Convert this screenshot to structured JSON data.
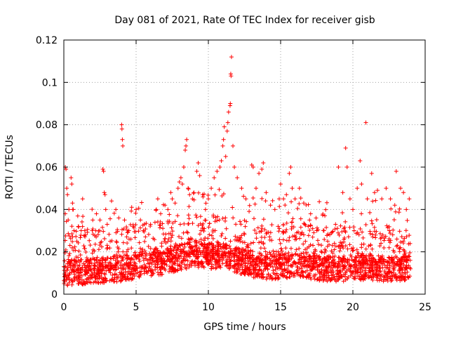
{
  "chart_data": {
    "type": "scatter",
    "title": "Day 081 of 2021, Rate Of TEC Index for receiver gisb",
    "xlabel": "GPS time / hours",
    "ylabel": "ROTI / TECUs",
    "xlim": [
      0,
      25
    ],
    "ylim": [
      0,
      0.12
    ],
    "xticks": [
      "0",
      "5",
      "10",
      "15",
      "20",
      "25"
    ],
    "yticks": [
      "0",
      "0.02",
      "0.04",
      "0.06",
      "0.08",
      "0.1",
      "0.12"
    ],
    "grid": true,
    "marker": "+",
    "color": "#ff0000",
    "series": [
      {
        "name": "ROTI",
        "points": [
          [
            0.0,
            0.013
          ],
          [
            0.1,
            0.038
          ],
          [
            0.1,
            0.06
          ],
          [
            0.15,
            0.059
          ],
          [
            0.2,
            0.05
          ],
          [
            0.25,
            0.047
          ],
          [
            0.3,
            0.035
          ],
          [
            0.35,
            0.04
          ],
          [
            0.5,
            0.055
          ],
          [
            0.55,
            0.052
          ],
          [
            0.6,
            0.043
          ],
          [
            0.65,
            0.04
          ],
          [
            0.7,
            0.03
          ],
          [
            0.9,
            0.025
          ],
          [
            1.0,
            0.032
          ],
          [
            1.2,
            0.03
          ],
          [
            1.3,
            0.045
          ],
          [
            1.5,
            0.028
          ],
          [
            2.0,
            0.035
          ],
          [
            2.2,
            0.03
          ],
          [
            2.5,
            0.035
          ],
          [
            2.7,
            0.059
          ],
          [
            2.75,
            0.058
          ],
          [
            2.8,
            0.048
          ],
          [
            2.85,
            0.047
          ],
          [
            2.9,
            0.04
          ],
          [
            3.0,
            0.033
          ],
          [
            3.3,
            0.044
          ],
          [
            3.6,
            0.04
          ],
          [
            3.8,
            0.036
          ],
          [
            4.0,
            0.08
          ],
          [
            4.02,
            0.078
          ],
          [
            4.05,
            0.073
          ],
          [
            4.08,
            0.07
          ],
          [
            4.2,
            0.035
          ],
          [
            4.5,
            0.03
          ],
          [
            4.8,
            0.032
          ],
          [
            5.0,
            0.04
          ],
          [
            5.3,
            0.035
          ],
          [
            5.5,
            0.03
          ],
          [
            6.0,
            0.033
          ],
          [
            6.4,
            0.04
          ],
          [
            6.5,
            0.045
          ],
          [
            6.7,
            0.038
          ],
          [
            7.0,
            0.042
          ],
          [
            7.2,
            0.04
          ],
          [
            7.4,
            0.048
          ],
          [
            7.5,
            0.045
          ],
          [
            7.7,
            0.043
          ],
          [
            7.9,
            0.05
          ],
          [
            8.0,
            0.053
          ],
          [
            8.1,
            0.055
          ],
          [
            8.2,
            0.052
          ],
          [
            8.3,
            0.06
          ],
          [
            8.4,
            0.068
          ],
          [
            8.45,
            0.07
          ],
          [
            8.5,
            0.073
          ],
          [
            8.6,
            0.05
          ],
          [
            8.7,
            0.047
          ],
          [
            8.9,
            0.045
          ],
          [
            9.0,
            0.048
          ],
          [
            9.2,
            0.058
          ],
          [
            9.3,
            0.062
          ],
          [
            9.4,
            0.056
          ],
          [
            9.6,
            0.047
          ],
          [
            9.8,
            0.04
          ],
          [
            10.0,
            0.045
          ],
          [
            10.2,
            0.05
          ],
          [
            10.4,
            0.055
          ],
          [
            10.6,
            0.058
          ],
          [
            10.8,
            0.06
          ],
          [
            10.9,
            0.063
          ],
          [
            11.0,
            0.07
          ],
          [
            11.05,
            0.073
          ],
          [
            11.1,
            0.079
          ],
          [
            11.2,
            0.065
          ],
          [
            11.3,
            0.077
          ],
          [
            11.35,
            0.081
          ],
          [
            11.4,
            0.086
          ],
          [
            11.5,
            0.089
          ],
          [
            11.52,
            0.09
          ],
          [
            11.55,
            0.104
          ],
          [
            11.57,
            0.103
          ],
          [
            11.6,
            0.112
          ],
          [
            11.7,
            0.07
          ],
          [
            11.8,
            0.06
          ],
          [
            12.0,
            0.055
          ],
          [
            12.3,
            0.05
          ],
          [
            12.6,
            0.045
          ],
          [
            13.0,
            0.061
          ],
          [
            13.1,
            0.06
          ],
          [
            13.3,
            0.05
          ],
          [
            13.5,
            0.057
          ],
          [
            13.7,
            0.059
          ],
          [
            13.8,
            0.062
          ],
          [
            14.0,
            0.048
          ],
          [
            14.3,
            0.042
          ],
          [
            14.6,
            0.04
          ],
          [
            14.9,
            0.045
          ],
          [
            15.0,
            0.052
          ],
          [
            15.2,
            0.045
          ],
          [
            15.4,
            0.047
          ],
          [
            15.6,
            0.057
          ],
          [
            15.7,
            0.06
          ],
          [
            15.8,
            0.05
          ],
          [
            16.0,
            0.045
          ],
          [
            16.3,
            0.05
          ],
          [
            16.6,
            0.043
          ],
          [
            17.0,
            0.035
          ],
          [
            17.5,
            0.03
          ],
          [
            18.0,
            0.03
          ],
          [
            18.4,
            0.028
          ],
          [
            18.8,
            0.033
          ],
          [
            19.0,
            0.06
          ],
          [
            19.3,
            0.048
          ],
          [
            19.5,
            0.069
          ],
          [
            19.6,
            0.06
          ],
          [
            19.8,
            0.045
          ],
          [
            20.0,
            0.04
          ],
          [
            20.3,
            0.05
          ],
          [
            20.5,
            0.063
          ],
          [
            20.6,
            0.052
          ],
          [
            20.9,
            0.081
          ],
          [
            21.0,
            0.045
          ],
          [
            21.3,
            0.057
          ],
          [
            21.5,
            0.048
          ],
          [
            21.7,
            0.049
          ],
          [
            22.0,
            0.045
          ],
          [
            22.3,
            0.05
          ],
          [
            22.6,
            0.045
          ],
          [
            22.9,
            0.042
          ],
          [
            23.0,
            0.058
          ],
          [
            23.3,
            0.05
          ],
          [
            23.5,
            0.048
          ],
          [
            23.7,
            0.04
          ],
          [
            23.9,
            0.045
          ]
        ]
      }
    ],
    "dense_band": {
      "description": "continuous baseline band of points",
      "x_range": [
        0,
        24
      ],
      "baseline_profile": [
        [
          0,
          0.01
        ],
        [
          2,
          0.011
        ],
        [
          4,
          0.012
        ],
        [
          6,
          0.014
        ],
        [
          8,
          0.017
        ],
        [
          9,
          0.019
        ],
        [
          10,
          0.018
        ],
        [
          11,
          0.018
        ],
        [
          12,
          0.016
        ],
        [
          13,
          0.014
        ],
        [
          14,
          0.013
        ],
        [
          15,
          0.013
        ],
        [
          16,
          0.014
        ],
        [
          17,
          0.013
        ],
        [
          18,
          0.012
        ],
        [
          19,
          0.012
        ],
        [
          20,
          0.012
        ],
        [
          21,
          0.013
        ],
        [
          22,
          0.012
        ],
        [
          23,
          0.012
        ],
        [
          24,
          0.012
        ]
      ]
    }
  }
}
